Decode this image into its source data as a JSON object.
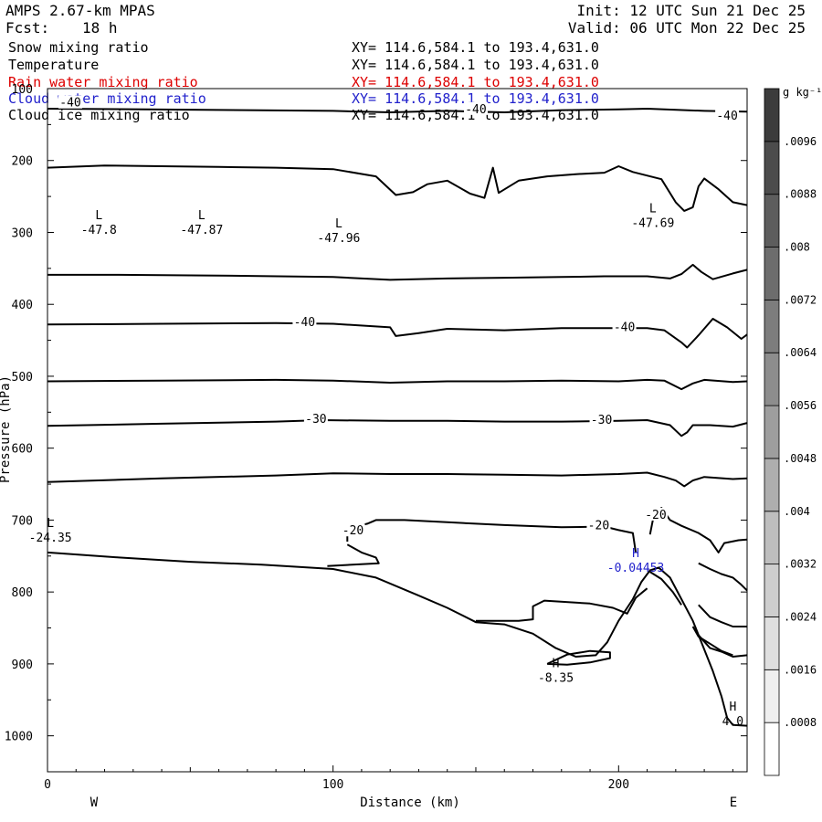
{
  "header": {
    "model_name": "AMPS 2.67-km MPAS",
    "forecast_label": "Fcst:",
    "forecast_value": "18 h",
    "init_text": "Init: 12 UTC Sun 21 Dec 25",
    "valid_text": "Valid: 06 UTC Mon 22 Dec 25"
  },
  "fields": [
    {
      "label": "Snow mixing ratio",
      "range": "XY= 114.6,584.1 to 193.4,631.0",
      "color": "#000000"
    },
    {
      "label": "Temperature",
      "range": "XY= 114.6,584.1 to 193.4,631.0",
      "color": "#000000"
    },
    {
      "label": "Rain water mixing ratio",
      "range": "XY= 114.6,584.1 to 193.4,631.0",
      "color": "#dd0000"
    },
    {
      "label": "Cloud water mixing ratio",
      "range": "XY= 114.6,584.1 to 193.4,631.0",
      "color": "#2222cc"
    },
    {
      "label": "Cloud ice mixing ratio",
      "range": "XY= 114.6,584.1 to 193.4,631.0",
      "color": "#000000"
    }
  ],
  "chart_data": {
    "type": "line",
    "title": "AMPS 2.67-km MPAS",
    "xlabel": "Distance (km)",
    "ylabel": "Pressure (hPa)",
    "xlim": [
      0,
      245
    ],
    "ylim": [
      1050,
      100
    ],
    "x_ticks": [
      0,
      100,
      200
    ],
    "y_ticks": [
      100,
      200,
      300,
      400,
      500,
      600,
      700,
      800,
      900,
      1000
    ],
    "x_ends": {
      "left": "W",
      "right": "E"
    },
    "colorbar": {
      "unit_label": "g kg⁻¹",
      "levels": [
        0.0008,
        0.0016,
        0.0024,
        0.0032,
        0.004,
        0.0048,
        0.0056,
        0.0064,
        0.0072,
        0.008,
        0.0088,
        0.0096
      ],
      "tick_labels": [
        ".0008",
        ".0016",
        ".0024",
        ".0032",
        ".004",
        ".0048",
        ".0056",
        ".0064",
        ".0072",
        ".008",
        ".0088",
        ".0096"
      ],
      "vmin": 0,
      "vmax": 0.0104
    },
    "series": [
      {
        "name": "isotherm-a",
        "color": "#000000",
        "points": [
          [
            0,
            128
          ],
          [
            35,
            129
          ],
          [
            70,
            130
          ],
          [
            100,
            131
          ],
          [
            120,
            133
          ],
          [
            140,
            131
          ],
          [
            160,
            133
          ],
          [
            180,
            130
          ],
          [
            200,
            129
          ],
          [
            210,
            128
          ],
          [
            230,
            131
          ],
          [
            245,
            132
          ]
        ]
      },
      {
        "name": "isotherm-b",
        "color": "#000000",
        "points": [
          [
            0,
            210
          ],
          [
            20,
            207
          ],
          [
            40,
            208
          ],
          [
            60,
            209
          ],
          [
            80,
            210
          ],
          [
            100,
            212
          ],
          [
            115,
            222
          ],
          [
            122,
            248
          ],
          [
            128,
            244
          ],
          [
            133,
            233
          ],
          [
            140,
            228
          ],
          [
            148,
            246
          ],
          [
            153,
            252
          ],
          [
            156,
            210
          ],
          [
            158,
            245
          ],
          [
            165,
            228
          ],
          [
            175,
            222
          ],
          [
            185,
            219
          ],
          [
            195,
            217
          ],
          [
            200,
            208
          ],
          [
            205,
            216
          ],
          [
            215,
            226
          ],
          [
            220,
            258
          ],
          [
            223,
            270
          ],
          [
            226,
            265
          ],
          [
            228,
            236
          ],
          [
            230,
            225
          ],
          [
            235,
            240
          ],
          [
            240,
            258
          ],
          [
            245,
            262
          ]
        ]
      },
      {
        "name": "isotherm-c",
        "color": "#000000",
        "points": [
          [
            0,
            359
          ],
          [
            25,
            359
          ],
          [
            60,
            360
          ],
          [
            100,
            362
          ],
          [
            120,
            366
          ],
          [
            140,
            364
          ],
          [
            160,
            363
          ],
          [
            180,
            362
          ],
          [
            195,
            361
          ],
          [
            210,
            361
          ],
          [
            218,
            364
          ],
          [
            222,
            358
          ],
          [
            226,
            345
          ],
          [
            229,
            355
          ],
          [
            233,
            365
          ],
          [
            240,
            357
          ],
          [
            245,
            352
          ]
        ]
      },
      {
        "name": "isotherm-d",
        "color": "#000000",
        "points": [
          [
            0,
            428
          ],
          [
            40,
            427
          ],
          [
            80,
            426
          ],
          [
            100,
            427
          ],
          [
            120,
            432
          ],
          [
            122,
            444
          ],
          [
            130,
            440
          ],
          [
            140,
            434
          ],
          [
            160,
            436
          ],
          [
            180,
            433
          ],
          [
            200,
            433
          ],
          [
            210,
            433
          ],
          [
            216,
            436
          ],
          [
            222,
            453
          ],
          [
            224,
            460
          ],
          [
            228,
            443
          ],
          [
            233,
            420
          ],
          [
            238,
            432
          ],
          [
            243,
            448
          ],
          [
            245,
            442
          ]
        ]
      },
      {
        "name": "isotherm-e",
        "color": "#000000",
        "points": [
          [
            0,
            507
          ],
          [
            40,
            506
          ],
          [
            80,
            505
          ],
          [
            100,
            506
          ],
          [
            120,
            509
          ],
          [
            140,
            507
          ],
          [
            160,
            507
          ],
          [
            180,
            506
          ],
          [
            200,
            507
          ],
          [
            210,
            505
          ],
          [
            216,
            506
          ],
          [
            222,
            518
          ],
          [
            226,
            510
          ],
          [
            230,
            505
          ],
          [
            240,
            508
          ],
          [
            245,
            507
          ]
        ]
      },
      {
        "name": "isotherm-f",
        "color": "#000000",
        "points": [
          [
            0,
            569
          ],
          [
            40,
            566
          ],
          [
            80,
            563
          ],
          [
            96,
            561
          ],
          [
            120,
            562
          ],
          [
            140,
            562
          ],
          [
            160,
            563
          ],
          [
            180,
            563
          ],
          [
            200,
            562
          ],
          [
            210,
            561
          ],
          [
            218,
            568
          ],
          [
            222,
            583
          ],
          [
            224,
            578
          ],
          [
            226,
            568
          ],
          [
            232,
            568
          ],
          [
            240,
            570
          ],
          [
            245,
            565
          ]
        ]
      },
      {
        "name": "isotherm-g",
        "color": "#000000",
        "points": [
          [
            0,
            647
          ],
          [
            40,
            642
          ],
          [
            80,
            638
          ],
          [
            100,
            635
          ],
          [
            120,
            636
          ],
          [
            140,
            636
          ],
          [
            160,
            637
          ],
          [
            180,
            638
          ],
          [
            200,
            636
          ],
          [
            210,
            634
          ],
          [
            216,
            640
          ],
          [
            220,
            645
          ],
          [
            223,
            653
          ],
          [
            226,
            645
          ],
          [
            230,
            640
          ],
          [
            240,
            643
          ],
          [
            245,
            642
          ]
        ]
      },
      {
        "name": "isotherm-h",
        "color": "#000000",
        "points": [
          [
            105,
            730
          ],
          [
            105,
            712
          ],
          [
            112,
            705
          ],
          [
            115,
            700
          ],
          [
            125,
            700
          ],
          [
            140,
            703
          ],
          [
            160,
            707
          ],
          [
            180,
            710
          ],
          [
            195,
            709
          ],
          [
            200,
            714
          ],
          [
            205,
            718
          ],
          [
            206,
            745
          ]
        ]
      },
      {
        "name": "isotherm-h-lower",
        "color": "#000000",
        "points": [
          [
            105,
            734
          ],
          [
            110,
            745
          ],
          [
            115,
            752
          ],
          [
            116,
            760
          ],
          [
            98,
            764
          ]
        ]
      },
      {
        "name": "isotherm-i",
        "color": "#000000",
        "points": [
          [
            211,
            720
          ],
          [
            212,
            700
          ],
          [
            215,
            683
          ],
          [
            218,
            700
          ],
          [
            222,
            708
          ],
          [
            228,
            718
          ],
          [
            232,
            728
          ],
          [
            235,
            745
          ],
          [
            237,
            732
          ],
          [
            242,
            728
          ],
          [
            245,
            727
          ]
        ]
      },
      {
        "name": "isotherm-j",
        "color": "#000000",
        "points": [
          [
            150,
            840
          ],
          [
            165,
            840
          ],
          [
            170,
            838
          ],
          [
            170,
            820
          ],
          [
            174,
            812
          ],
          [
            190,
            816
          ],
          [
            198,
            822
          ],
          [
            203,
            830
          ],
          [
            206,
            808
          ],
          [
            210,
            795
          ]
        ]
      },
      {
        "name": "isotherm-k",
        "color": "#000000",
        "points": [
          [
            228,
            760
          ],
          [
            232,
            768
          ],
          [
            236,
            775
          ],
          [
            240,
            780
          ],
          [
            243,
            790
          ],
          [
            245,
            798
          ]
        ]
      },
      {
        "name": "isotherm-l",
        "color": "#000000",
        "points": [
          [
            228,
            818
          ],
          [
            232,
            835
          ],
          [
            236,
            842
          ],
          [
            240,
            848
          ],
          [
            245,
            848
          ]
        ]
      },
      {
        "name": "isotherm-m",
        "color": "#000000",
        "points": [
          [
            228,
            860
          ],
          [
            232,
            878
          ],
          [
            236,
            883
          ],
          [
            240,
            890
          ],
          [
            245,
            888
          ]
        ]
      },
      {
        "name": "isotherm-n",
        "color": "#000000",
        "points": [
          [
            0,
            745
          ],
          [
            25,
            752
          ],
          [
            50,
            758
          ],
          [
            75,
            762
          ],
          [
            100,
            768
          ],
          [
            115,
            780
          ],
          [
            130,
            805
          ],
          [
            140,
            822
          ],
          [
            150,
            842
          ],
          [
            160,
            845
          ],
          [
            170,
            858
          ],
          [
            178,
            878
          ],
          [
            185,
            890
          ],
          [
            192,
            888
          ],
          [
            196,
            870
          ],
          [
            200,
            840
          ],
          [
            205,
            810
          ],
          [
            208,
            786
          ],
          [
            211,
            770
          ],
          [
            214,
            766
          ],
          [
            218,
            780
          ],
          [
            222,
            810
          ],
          [
            226,
            840
          ],
          [
            230,
            880
          ],
          [
            233,
            910
          ],
          [
            236,
            945
          ],
          [
            238,
            975
          ],
          [
            240,
            985
          ],
          [
            245,
            986
          ]
        ]
      },
      {
        "name": "isotherm-n-trough",
        "color": "#000000",
        "points": [
          [
            175,
            900
          ],
          [
            182,
            887
          ],
          [
            190,
            882
          ],
          [
            197,
            884
          ],
          [
            197,
            892
          ],
          [
            190,
            898
          ],
          [
            182,
            901
          ],
          [
            175,
            900
          ]
        ]
      },
      {
        "name": "isotherm-o",
        "color": "#000000",
        "points": [
          [
            211,
            772
          ],
          [
            215,
            782
          ],
          [
            219,
            800
          ],
          [
            222,
            818
          ]
        ]
      },
      {
        "name": "isotherm-p",
        "color": "#000000",
        "points": [
          [
            226,
            848
          ],
          [
            228,
            862
          ],
          [
            232,
            872
          ],
          [
            236,
            882
          ],
          [
            240,
            888
          ]
        ]
      }
    ],
    "contour_labels": [
      {
        "text": "-40",
        "x": 8,
        "y": 120,
        "color": "#000000"
      },
      {
        "text": "-40",
        "x": 150,
        "y": 129,
        "color": "#000000"
      },
      {
        "text": "-40",
        "x": 238,
        "y": 138,
        "color": "#000000"
      },
      {
        "text": "-40",
        "x": 90,
        "y": 425,
        "color": "#000000"
      },
      {
        "text": "-40",
        "x": 202,
        "y": 432,
        "color": "#000000"
      },
      {
        "text": "-30",
        "x": 94,
        "y": 560,
        "color": "#000000"
      },
      {
        "text": "-30",
        "x": 194,
        "y": 561,
        "color": "#000000"
      },
      {
        "text": "-20",
        "x": 107,
        "y": 715,
        "color": "#000000"
      },
      {
        "text": "-20",
        "x": 193,
        "y": 708,
        "color": "#000000"
      },
      {
        "text": "-20",
        "x": 213,
        "y": 693,
        "color": "#000000"
      }
    ],
    "extrema": [
      {
        "mark": "L",
        "value": "-47.8",
        "x": 18,
        "y": 292,
        "color": "#000000"
      },
      {
        "mark": "L",
        "value": "-47.87",
        "x": 54,
        "y": 292,
        "color": "#000000"
      },
      {
        "mark": "L",
        "value": "-47.96",
        "x": 102,
        "y": 303,
        "color": "#000000"
      },
      {
        "mark": "L",
        "value": "-47.69",
        "x": 212,
        "y": 282,
        "color": "#000000"
      },
      {
        "mark": "L",
        "value": "-24.35",
        "x": 1,
        "y": 720,
        "color": "#000000"
      },
      {
        "mark": "H",
        "value": "-8.35",
        "x": 178,
        "y": 915,
        "color": "#000000"
      },
      {
        "mark": "H",
        "value": "4.0",
        "x": 240,
        "y": 975,
        "color": "#000000"
      },
      {
        "mark": "H",
        "value": "-0.04453",
        "x": 206,
        "y": 762,
        "color": "#2222cc"
      }
    ]
  }
}
